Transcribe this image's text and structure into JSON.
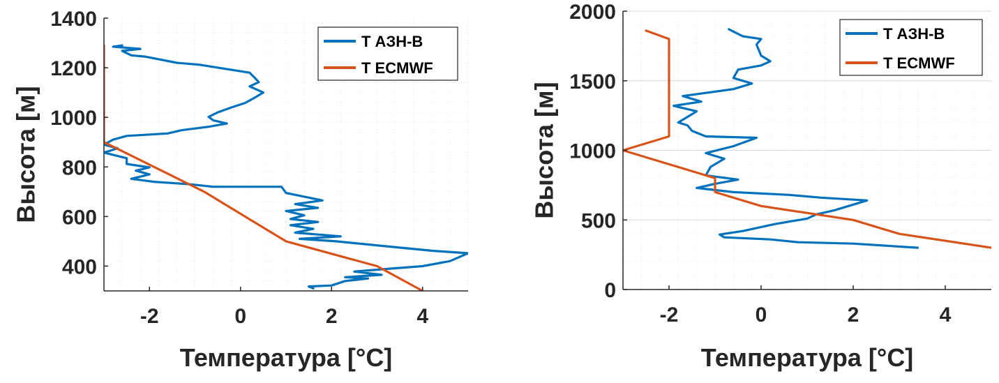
{
  "chart_data": [
    {
      "type": "line",
      "xlabel": "Температура [°C]",
      "ylabel": "Высота [м]",
      "xlim": [
        -3,
        5
      ],
      "ylim": [
        300,
        1400
      ],
      "xticks": [
        -2,
        0,
        2,
        4
      ],
      "yticks": [
        400,
        600,
        800,
        1000,
        1200,
        1400
      ],
      "grid": "minor-dotted",
      "legend_position": "top-right",
      "series": [
        {
          "name": "T АЗН-В",
          "color": "#0072BD",
          "points": [
            [
              1.6,
              310
            ],
            [
              1.5,
              318
            ],
            [
              2.0,
              322
            ],
            [
              2.3,
              340
            ],
            [
              2.8,
              350
            ],
            [
              2.3,
              355
            ],
            [
              3.1,
              365
            ],
            [
              2.5,
              378
            ],
            [
              3.3,
              390
            ],
            [
              4.0,
              400
            ],
            [
              4.6,
              420
            ],
            [
              5.0,
              452
            ],
            [
              4.2,
              462
            ],
            [
              3.2,
              480
            ],
            [
              2.1,
              500
            ],
            [
              1.3,
              510
            ],
            [
              2.2,
              520
            ],
            [
              1.2,
              535
            ],
            [
              1.6,
              550
            ],
            [
              1.1,
              565
            ],
            [
              1.7,
              578
            ],
            [
              1.1,
              590
            ],
            [
              1.4,
              605
            ],
            [
              1.0,
              622
            ],
            [
              1.7,
              635
            ],
            [
              1.2,
              650
            ],
            [
              1.8,
              665
            ],
            [
              1.4,
              680
            ],
            [
              1.0,
              695
            ],
            [
              0.9,
              720
            ],
            [
              -0.6,
              720
            ],
            [
              -1.1,
              730
            ],
            [
              -1.9,
              740
            ],
            [
              -2.4,
              752
            ],
            [
              -2.0,
              770
            ],
            [
              -2.3,
              785
            ],
            [
              -2.0,
              798
            ],
            [
              -2.5,
              812
            ],
            [
              -2.5,
              835
            ],
            [
              -3.0,
              858
            ],
            [
              -2.7,
              875
            ],
            [
              -3.0,
              890
            ],
            [
              -2.8,
              910
            ],
            [
              -2.5,
              925
            ],
            [
              -1.6,
              935
            ],
            [
              -1.3,
              948
            ],
            [
              -0.7,
              962
            ],
            [
              -0.3,
              975
            ],
            [
              -0.6,
              988
            ],
            [
              -0.7,
              1002
            ],
            [
              -0.5,
              1020
            ],
            [
              -0.2,
              1040
            ],
            [
              0.1,
              1058
            ],
            [
              0.3,
              1078
            ],
            [
              0.5,
              1100
            ],
            [
              0.2,
              1125
            ],
            [
              0.4,
              1142
            ],
            [
              0.3,
              1162
            ],
            [
              0.2,
              1180
            ],
            [
              -0.9,
              1212
            ],
            [
              -1.4,
              1220
            ],
            [
              -2.1,
              1245
            ],
            [
              -2.4,
              1250
            ],
            [
              -2.6,
              1268
            ],
            [
              -2.2,
              1276
            ],
            [
              -2.8,
              1285
            ],
            [
              -2.6,
              1290
            ]
          ]
        },
        {
          "name": "T ECMWF",
          "color": "#D95319",
          "points": [
            [
              4.0,
              300
            ],
            [
              3.0,
              400
            ],
            [
              1.0,
              500
            ],
            [
              -0.8,
              700
            ],
            [
              -3.0,
              900
            ],
            [
              -3.0,
              1290
            ]
          ]
        }
      ]
    },
    {
      "type": "line",
      "xlabel": "Температура [°C]",
      "ylabel": "Высота [м]",
      "xlim": [
        -3,
        5
      ],
      "ylim": [
        0,
        2000
      ],
      "xticks": [
        -2,
        0,
        2,
        4
      ],
      "yticks": [
        0,
        500,
        1000,
        1500,
        2000
      ],
      "grid": "minor-dotted",
      "legend_position": "top-right",
      "series": [
        {
          "name": "T АЗН-В",
          "color": "#0072BD",
          "points": [
            [
              3.4,
              300
            ],
            [
              2.0,
              330
            ],
            [
              0.8,
              340
            ],
            [
              0.2,
              360
            ],
            [
              -0.8,
              375
            ],
            [
              -0.9,
              395
            ],
            [
              -0.4,
              420
            ],
            [
              0.3,
              470
            ],
            [
              1.0,
              510
            ],
            [
              1.2,
              540
            ],
            [
              1.6,
              570
            ],
            [
              1.9,
              600
            ],
            [
              2.3,
              640
            ],
            [
              1.3,
              660
            ],
            [
              0.6,
              680
            ],
            [
              -0.6,
              700
            ],
            [
              -1.4,
              730
            ],
            [
              -1.0,
              760
            ],
            [
              -0.5,
              790
            ],
            [
              -1.2,
              820
            ],
            [
              -1.1,
              880
            ],
            [
              -0.8,
              940
            ],
            [
              -1.2,
              980
            ],
            [
              -0.6,
              1030
            ],
            [
              -0.1,
              1090
            ],
            [
              -1.2,
              1100
            ],
            [
              -1.5,
              1140
            ],
            [
              -1.6,
              1180
            ],
            [
              -1.8,
              1200
            ],
            [
              -1.4,
              1280
            ],
            [
              -1.9,
              1320
            ],
            [
              -1.3,
              1350
            ],
            [
              -1.7,
              1390
            ],
            [
              -0.6,
              1440
            ],
            [
              -0.2,
              1480
            ],
            [
              -0.6,
              1520
            ],
            [
              -0.5,
              1580
            ],
            [
              0.0,
              1610
            ],
            [
              0.2,
              1640
            ],
            [
              0.0,
              1680
            ],
            [
              -0.1,
              1760
            ],
            [
              0.0,
              1800
            ],
            [
              -0.4,
              1820
            ],
            [
              -0.7,
              1870
            ]
          ]
        },
        {
          "name": "T ECMWF",
          "color": "#D95319",
          "points": [
            [
              5.0,
              300
            ],
            [
              3.0,
              400
            ],
            [
              2.0,
              500
            ],
            [
              0.0,
              600
            ],
            [
              -1.0,
              700
            ],
            [
              -1.0,
              800
            ],
            [
              -3.0,
              1000
            ],
            [
              -2.0,
              1100
            ],
            [
              -2.0,
              1800
            ],
            [
              -2.5,
              1860
            ]
          ]
        }
      ]
    }
  ]
}
